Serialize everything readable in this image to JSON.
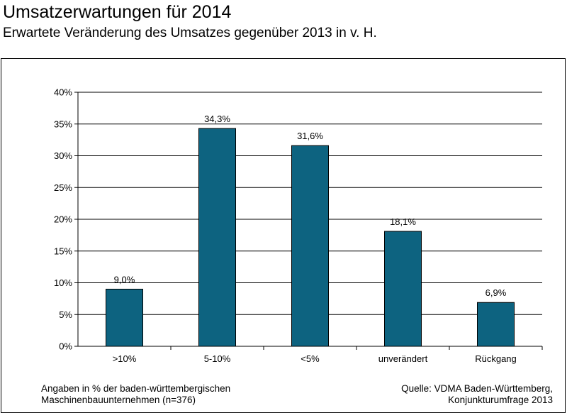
{
  "header": {
    "title": "Umsatzerwartungen für 2014",
    "subtitle": "Erwartete Veränderung des Umsatzes gegenüber 2013 in v. H."
  },
  "footer": {
    "note_line1": "Angaben in % der baden-württembergischen",
    "note_line2": "Maschinenbauunternehmen (n=376)",
    "source_line1": "Quelle: VDMA Baden-Württemberg,",
    "source_line2": "Konjunkturumfrage 2013"
  },
  "chart_data": {
    "type": "bar",
    "categories": [
      ">10%",
      "5-10%",
      "<5%",
      "unverändert",
      "Rückgang"
    ],
    "values": [
      9.0,
      34.3,
      31.6,
      18.1,
      6.9
    ],
    "value_labels": [
      "9,0%",
      "34,3%",
      "31,6%",
      "18,1%",
      "6,9%"
    ],
    "y_ticks": [
      0,
      5,
      10,
      15,
      20,
      25,
      30,
      35,
      40
    ],
    "y_tick_labels": [
      "0%",
      "5%",
      "10%",
      "15%",
      "20%",
      "25%",
      "30%",
      "35%",
      "40%"
    ],
    "ylim": [
      0,
      40
    ],
    "grid": true,
    "bar_color": "#0d6380",
    "xlabel": "",
    "ylabel": ""
  }
}
